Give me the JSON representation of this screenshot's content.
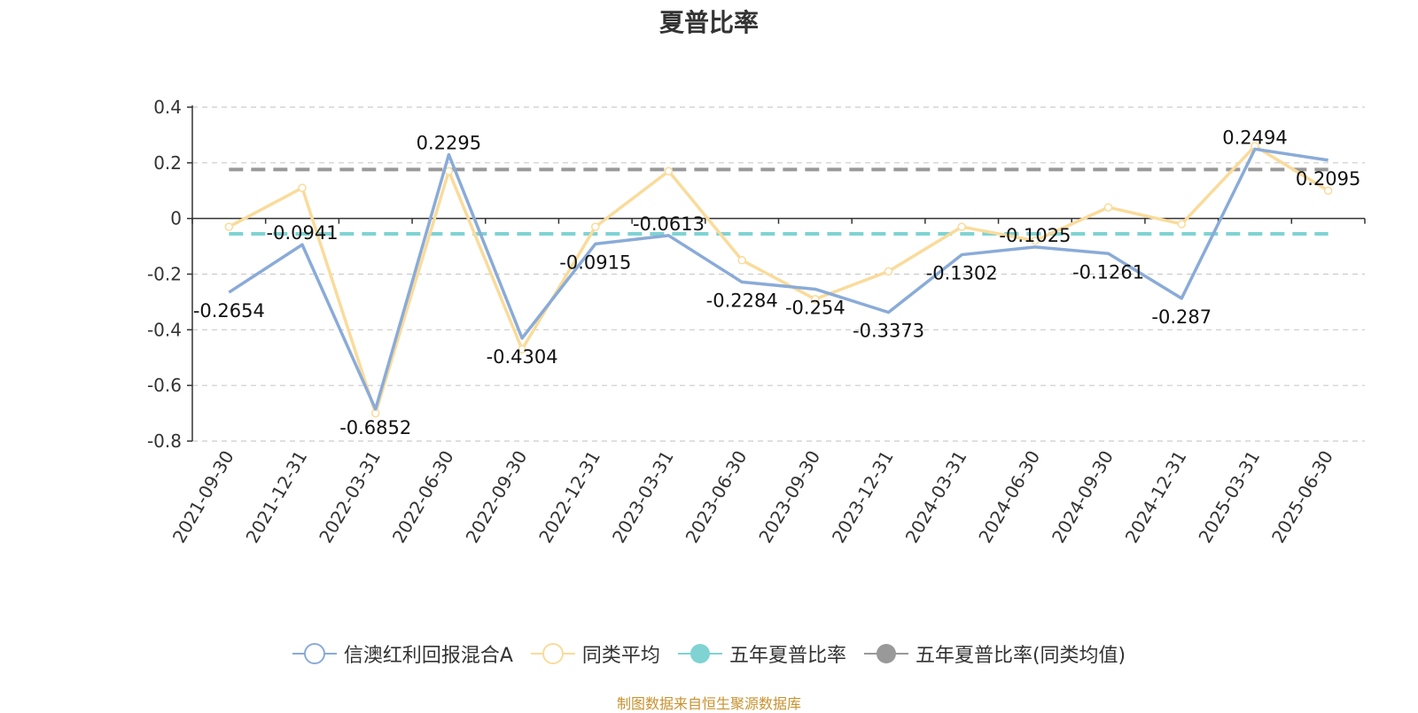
{
  "chart_data": {
    "type": "line",
    "title": "夏普比率",
    "categories": [
      "2021-09-30",
      "2021-12-31",
      "2022-03-31",
      "2022-06-30",
      "2022-09-30",
      "2022-12-31",
      "2023-03-31",
      "2023-06-30",
      "2023-09-30",
      "2023-12-31",
      "2024-03-31",
      "2024-06-30",
      "2024-09-30",
      "2024-12-31",
      "2025-03-31",
      "2025-06-30"
    ],
    "ylim": [
      -0.8,
      0.4
    ],
    "yticks": [
      0.4,
      0.2,
      0,
      -0.2,
      -0.4,
      -0.6,
      -0.8
    ],
    "ytick_labels": [
      "0.4",
      "0.2",
      "0",
      "-0.2",
      "-0.4",
      "-0.6",
      "-0.8"
    ],
    "grid": "horizontal dashed",
    "legend_position": "bottom",
    "series": [
      {
        "name": "信澳红利回报混合A",
        "color": "#8aabd8",
        "values": [
          -0.2654,
          -0.0941,
          -0.6852,
          0.2295,
          -0.4304,
          -0.0915,
          -0.0613,
          -0.2284,
          -0.254,
          -0.3373,
          -0.1302,
          -0.1025,
          -0.1261,
          -0.287,
          0.2494,
          0.2095
        ],
        "labels": [
          "-0.2654",
          "-0.0941",
          "-0.6852",
          "0.2295",
          "-0.4304",
          "-0.0915",
          "-0.0613",
          "-0.2284",
          "-0.254",
          "-0.3373",
          "-0.1302",
          "-0.1025",
          "-0.1261",
          "-0.287",
          "0.2494",
          "0.2095"
        ]
      },
      {
        "name": "同类平均",
        "color": "#fadb9b",
        "values": [
          -0.03,
          0.11,
          -0.7,
          0.17,
          -0.47,
          -0.03,
          0.17,
          -0.15,
          -0.29,
          -0.19,
          -0.03,
          -0.08,
          0.04,
          -0.02,
          0.26,
          0.1
        ]
      },
      {
        "name": "五年夏普比率",
        "color": "#7fd3d3",
        "constant": -0.055
      },
      {
        "name": "五年夏普比率(同类均值)",
        "color": "#999999",
        "constant": 0.176
      }
    ],
    "source_note": "制图数据来自恒生聚源数据库"
  }
}
